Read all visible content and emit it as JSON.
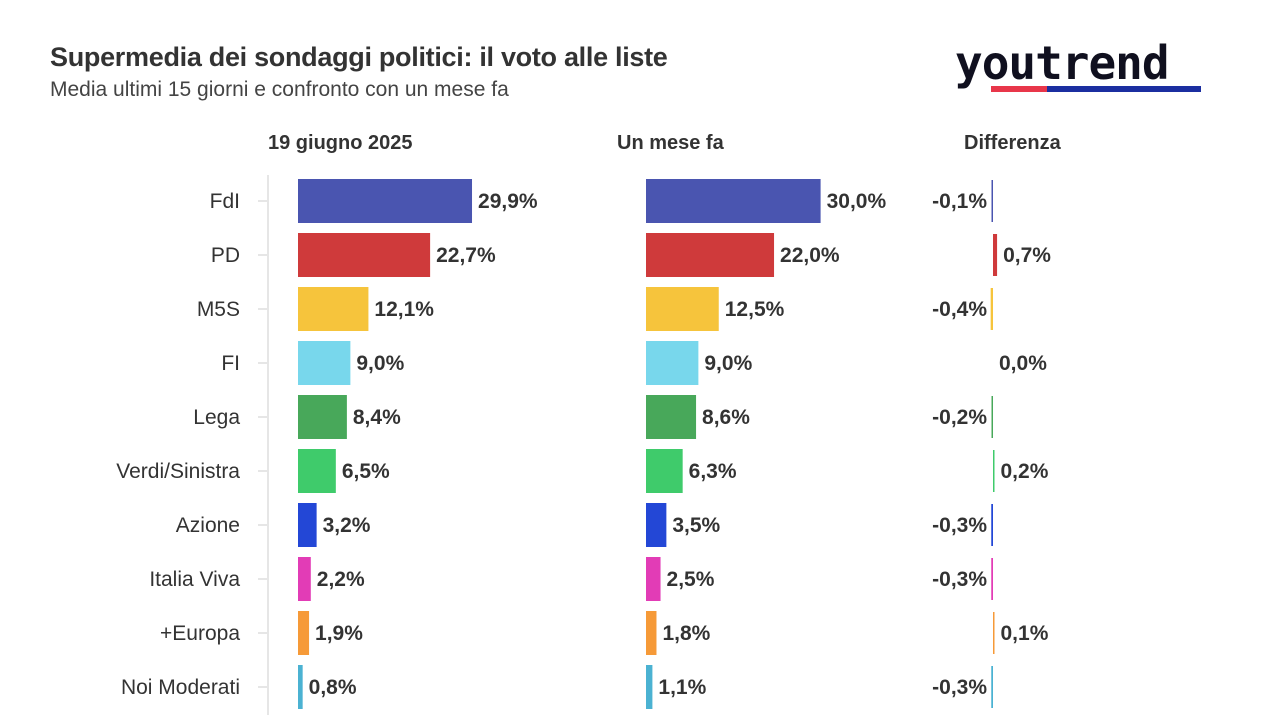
{
  "title": "Supermedia dei sondaggi politici: il voto alle liste",
  "subtitle": "Media ultimi 15 giorni e confronto con un mese fa",
  "logo": {
    "text": "youtrend",
    "colors": [
      "#e8364a",
      "#1b2ea0"
    ]
  },
  "chart_data": {
    "type": "bar",
    "orientation": "horizontal",
    "categories": [
      "FdI",
      "PD",
      "M5S",
      "FI",
      "Lega",
      "Verdi/Sinistra",
      "Azione",
      "Italia Viva",
      "+Europa",
      "Noi Moderati"
    ],
    "colors": [
      "#4a55b0",
      "#cf3a3b",
      "#f6c43c",
      "#78d7ec",
      "#48a85a",
      "#3fcb6b",
      "#2347d6",
      "#e23cb6",
      "#f69a38",
      "#4bb2d2"
    ],
    "series": [
      {
        "name": "19 giugno 2025",
        "values": [
          29.9,
          22.7,
          12.1,
          9.0,
          8.4,
          6.5,
          3.2,
          2.2,
          1.9,
          0.8
        ],
        "labels": [
          "29,9%",
          "22,7%",
          "12,1%",
          "9,0%",
          "8,4%",
          "6,5%",
          "3,2%",
          "2,2%",
          "1,9%",
          "0,8%"
        ]
      },
      {
        "name": "Un mese fa",
        "values": [
          30.0,
          22.0,
          12.5,
          9.0,
          8.6,
          6.3,
          3.5,
          2.5,
          1.8,
          1.1
        ],
        "labels": [
          "30,0%",
          "22,0%",
          "12,5%",
          "9,0%",
          "8,6%",
          "6,3%",
          "3,5%",
          "2,5%",
          "1,8%",
          "1,1%"
        ]
      },
      {
        "name": "Differenza",
        "values": [
          -0.1,
          0.7,
          -0.4,
          0.0,
          -0.2,
          0.2,
          -0.3,
          -0.3,
          0.1,
          -0.3
        ],
        "labels": [
          "-0,1%",
          "0,7%",
          "-0,4%",
          "0,0%",
          "-0,2%",
          "0,2%",
          "-0,3%",
          "-0,3%",
          "0,1%",
          "-0,3%"
        ]
      }
    ],
    "xlabel": "",
    "ylabel": "",
    "grid": false,
    "legend": "none"
  }
}
